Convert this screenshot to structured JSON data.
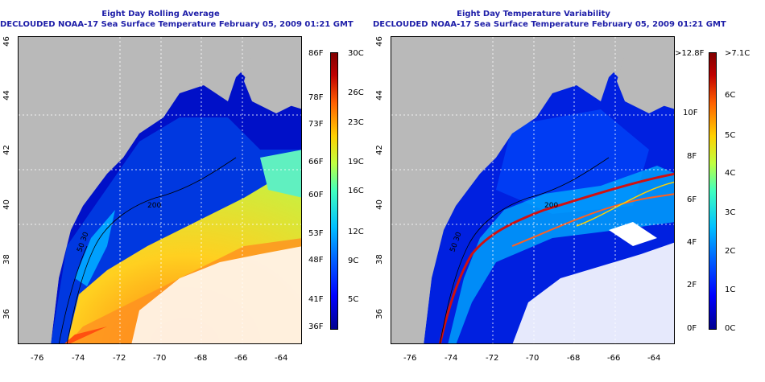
{
  "left_panel": {
    "title_line1": "Eight Day Rolling Average",
    "title_line2": "DECLOUDED NOAA-17 Sea Surface Temperature February 05, 2009 01:21 GMT",
    "colorbar_left_labels": [
      "86F",
      "78F",
      "73F",
      "66F",
      "60F",
      "53F",
      "48F",
      "41F",
      "36F"
    ],
    "colorbar_right_labels": [
      "30C",
      "26C",
      "23C",
      "19C",
      "16C",
      "12C",
      "9C",
      "5C"
    ]
  },
  "right_panel": {
    "title_line1": "Eight Day Temperature Variability",
    "title_line2": "DECLOUDED NOAA-17 Sea Surface Temperature February 05, 2009 01:21 GMT",
    "colorbar_left_labels": [
      ">12.8F",
      "10F",
      "8F",
      "6F",
      "4F",
      "2F",
      "0F"
    ],
    "colorbar_right_labels": [
      ">7.1C",
      "6C",
      "5C",
      "4C",
      "3C",
      "2C",
      "1C",
      "0C"
    ]
  },
  "axes": {
    "x_ticks": [
      "-76",
      "-74",
      "-72",
      "-70",
      "-68",
      "-66",
      "-64"
    ],
    "y_ticks": [
      "46",
      "44",
      "42",
      "40",
      "38",
      "36"
    ]
  },
  "contour_labels": [
    "200",
    "50 30"
  ],
  "colors": {
    "title": "#1e1ea8",
    "land": "#b9b9b9",
    "cloud": "#ffffff",
    "sst_scale": [
      "#00008f",
      "#0000ff",
      "#0060ff",
      "#00c0ff",
      "#40ffbf",
      "#c0ff40",
      "#ffd000",
      "#ff6000",
      "#c00000",
      "#800000"
    ]
  }
}
